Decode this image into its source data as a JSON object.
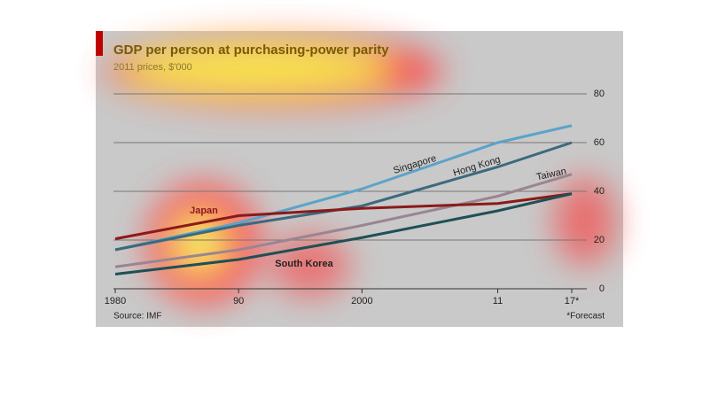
{
  "chart_data": {
    "type": "line",
    "title": "GDP per person at purchasing-power parity",
    "subtitle": "2011 prices, $'000",
    "source": "Source: IMF",
    "note": "*Forecast",
    "x": [
      1980,
      1990,
      2000,
      2011,
      2017
    ],
    "xlim": [
      1980,
      2017
    ],
    "xticks": [
      {
        "value": 1980,
        "label": "1980"
      },
      {
        "value": 1990,
        "label": "90"
      },
      {
        "value": 2000,
        "label": "2000"
      },
      {
        "value": 2011,
        "label": "11"
      },
      {
        "value": 2017,
        "label": "17*"
      }
    ],
    "ylim": [
      0,
      80
    ],
    "yticks": [
      0,
      20,
      40,
      60,
      80
    ],
    "grid": true,
    "series": [
      {
        "name": "Singapore",
        "color": "#5ba3c9",
        "values": [
          16,
          27,
          41,
          60,
          67
        ]
      },
      {
        "name": "Hong Kong",
        "color": "#3b6a7f",
        "values": [
          16,
          26,
          34,
          50,
          60
        ]
      },
      {
        "name": "Taiwan",
        "color": "#9a8592",
        "values": [
          9,
          16,
          26,
          38,
          47
        ]
      },
      {
        "name": "Japan",
        "color": "#8b1a1a",
        "values": [
          20.5,
          30,
          33,
          35,
          39
        ]
      },
      {
        "name": "South Korea",
        "color": "#1e5055",
        "values": [
          6,
          12,
          21,
          32,
          39
        ]
      }
    ]
  }
}
